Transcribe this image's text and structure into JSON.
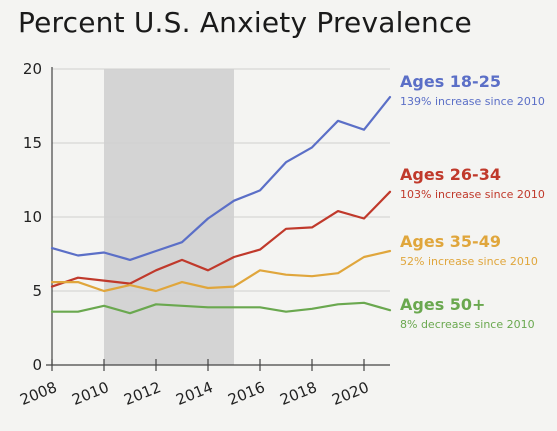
{
  "chart_data": {
    "type": "line",
    "title": "Percent U.S. Anxiety Prevalence",
    "xlabel": "",
    "ylabel": "",
    "x": [
      2008,
      2009,
      2010,
      2011,
      2012,
      2013,
      2014,
      2015,
      2016,
      2017,
      2018,
      2019,
      2020,
      2021
    ],
    "xlim": [
      2008,
      2021
    ],
    "ylim": [
      0,
      20
    ],
    "x_ticks": [
      "2008",
      "2010",
      "2012",
      "2014",
      "2016",
      "2018",
      "2020"
    ],
    "y_ticks": [
      "0",
      "5",
      "10",
      "15",
      "20"
    ],
    "grid": "horizontal",
    "shaded_region": {
      "x_start": 2010,
      "x_end": 2015,
      "color": "#d4d4d4"
    },
    "legend_placement": "right",
    "series": [
      {
        "name": "Ages 18-25",
        "note": "139% increase since 2010",
        "color": "#5b6fc7",
        "values": [
          7.9,
          7.4,
          7.6,
          7.1,
          7.7,
          8.3,
          9.9,
          11.1,
          11.8,
          13.7,
          14.7,
          16.5,
          15.9,
          18.1
        ]
      },
      {
        "name": "Ages 26-34",
        "note": "103% increase since 2010",
        "color": "#c0392b",
        "values": [
          5.3,
          5.9,
          5.7,
          5.5,
          6.4,
          7.1,
          6.4,
          7.3,
          7.8,
          9.2,
          9.3,
          10.4,
          9.9,
          11.7
        ]
      },
      {
        "name": "Ages 35-49",
        "note": "52% increase since 2010",
        "color": "#e0a63c",
        "values": [
          5.6,
          5.6,
          5.0,
          5.4,
          5.0,
          5.6,
          5.2,
          5.3,
          6.4,
          6.1,
          6.0,
          6.2,
          7.3,
          7.7
        ]
      },
      {
        "name": "Ages 50+",
        "note": "8% decrease since 2010",
        "color": "#6aa84f",
        "values": [
          3.6,
          3.6,
          4.0,
          3.5,
          4.1,
          4.0,
          3.9,
          3.9,
          3.9,
          3.6,
          3.8,
          4.1,
          4.2,
          3.7
        ]
      }
    ]
  }
}
